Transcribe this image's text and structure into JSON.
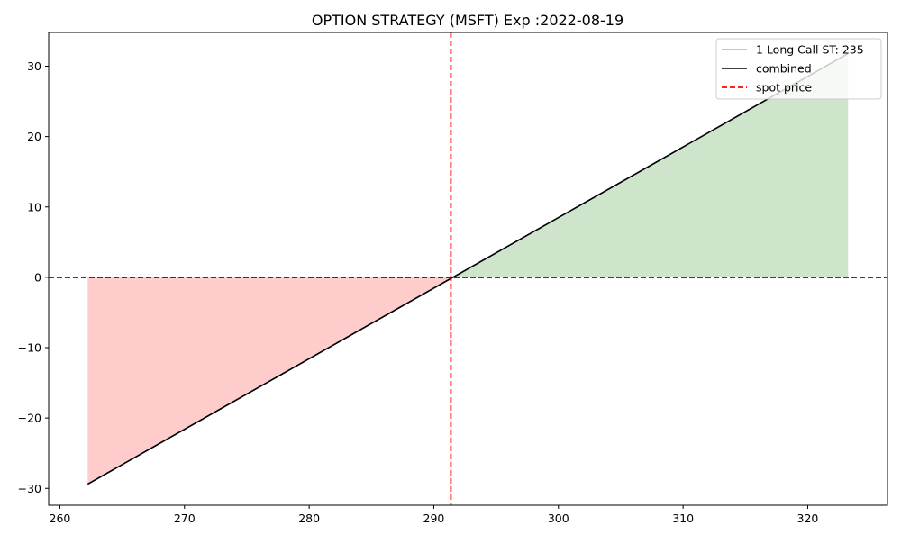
{
  "chart_data": {
    "type": "line",
    "title": "OPTION STRATEGY (MSFT)  Exp :2022-08-19",
    "xlabel": "",
    "ylabel": "",
    "xlim": [
      259.1,
      326.4
    ],
    "ylim": [
      -32.4,
      34.8
    ],
    "xticks": [
      260,
      270,
      280,
      290,
      300,
      310,
      320
    ],
    "yticks": [
      -30,
      -20,
      -10,
      0,
      10,
      20,
      30
    ],
    "xtick_labels": [
      "260",
      "270",
      "280",
      "290",
      "300",
      "310",
      "320"
    ],
    "ytick_labels": [
      "−30",
      "−20",
      "−10",
      "0",
      "10",
      "20",
      "30"
    ],
    "spot_price": 291.37,
    "zero_line": 0,
    "series": [
      {
        "name": "1 Long Call ST: 235",
        "x": [
          262.23,
          323.24
        ],
        "y": [
          -29.4,
          31.8
        ],
        "color": "#92b9df",
        "style": "solid"
      },
      {
        "name": "combined",
        "x": [
          262.23,
          323.24
        ],
        "y": [
          -29.4,
          31.8
        ],
        "color": "#000000",
        "style": "solid"
      },
      {
        "name": "spot price",
        "color": "#ff0000",
        "style": "dashed"
      }
    ],
    "fill_negative_color": "#ffcccc",
    "fill_positive_color": "#cee5cc",
    "grid": false,
    "legend_position": "top-right"
  }
}
